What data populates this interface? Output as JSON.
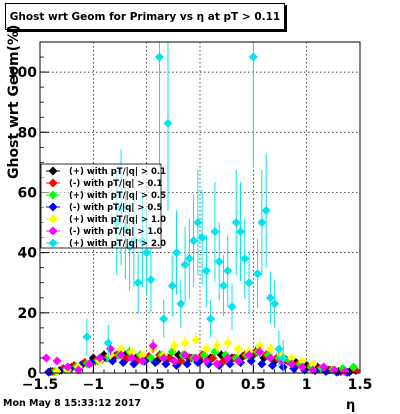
{
  "chart_data": {
    "type": "scatter",
    "title": "Ghost wrt Geom for Primary vs   η at pT > 0.11",
    "xlabel": "η",
    "ylabel": "Ghost wrt Geom(%)",
    "xlim": [
      -1.5,
      1.5
    ],
    "ylim": [
      0,
      110
    ],
    "x_ticks": [
      -1.5,
      -1,
      -0.5,
      0,
      0.5,
      1,
      1.5
    ],
    "x_tick_labels": [
      "−1.5",
      "−1",
      "−0.5",
      "0",
      "0.5",
      "1",
      "1.5"
    ],
    "y_ticks": [
      0,
      20,
      40,
      60,
      80,
      100
    ],
    "y_tick_labels": [
      "0",
      "20",
      "40",
      "60",
      "80",
      "100"
    ],
    "grid": true,
    "legend_position": "middle-left",
    "series": [
      {
        "name": "(+) with pT/|q| > 0.1",
        "color": "#000000",
        "x": [
          -1.4,
          -1.3,
          -1.2,
          -1.1,
          -1.0,
          -0.9,
          -0.8,
          -0.7,
          -0.6,
          -0.5,
          -0.4,
          -0.3,
          -0.2,
          -0.1,
          0.0,
          0.1,
          0.2,
          0.3,
          0.4,
          0.5,
          0.6,
          0.7,
          0.8,
          0.9,
          1.0,
          1.1,
          1.2,
          1.3,
          1.4
        ],
        "y": [
          0.5,
          1.0,
          2.0,
          3.0,
          5.0,
          6.0,
          5.5,
          6.0,
          5.0,
          4.5,
          4.0,
          5.0,
          6.0,
          5.0,
          4.0,
          5.0,
          6.0,
          5.0,
          5.5,
          6.0,
          5.0,
          4.0,
          4.5,
          3.5,
          2.5,
          2.0,
          1.0,
          0.5,
          0.3
        ]
      },
      {
        "name": "(-) with pT/|q| > 0.1",
        "color": "#ff0000",
        "x": [
          -1.38,
          -1.28,
          -1.18,
          -1.08,
          -0.98,
          -0.88,
          -0.78,
          -0.68,
          -0.58,
          -0.48,
          -0.38,
          -0.28,
          -0.18,
          -0.08,
          0.02,
          0.12,
          0.22,
          0.32,
          0.42,
          0.52,
          0.62,
          0.72,
          0.82,
          0.92,
          1.02,
          1.12,
          1.22,
          1.32,
          1.46
        ],
        "y": [
          0.5,
          1.5,
          2.5,
          3.5,
          4.0,
          5.0,
          6.0,
          5.0,
          4.5,
          5.5,
          6.0,
          5.0,
          4.0,
          5.0,
          6.0,
          5.0,
          4.0,
          5.0,
          6.0,
          7.0,
          6.0,
          5.0,
          4.0,
          3.0,
          2.0,
          1.5,
          1.0,
          0.5,
          0.8
        ]
      },
      {
        "name": "(+) with pT/|q| > 0.5",
        "color": "#00ff00",
        "x": [
          -1.36,
          -1.26,
          -1.16,
          -1.06,
          -0.96,
          -0.86,
          -0.76,
          -0.66,
          -0.56,
          -0.46,
          -0.36,
          -0.26,
          -0.16,
          -0.06,
          0.04,
          0.14,
          0.24,
          0.34,
          0.44,
          0.54,
          0.64,
          0.74,
          0.84,
          0.94,
          1.04,
          1.14,
          1.24,
          1.34,
          1.44
        ],
        "y": [
          0.5,
          1.0,
          2.0,
          3.0,
          4.0,
          5.0,
          6.0,
          7.0,
          6.0,
          5.0,
          6.0,
          7.0,
          6.0,
          5.0,
          6.0,
          7.0,
          6.0,
          5.0,
          6.0,
          7.0,
          6.0,
          5.0,
          4.0,
          3.0,
          2.0,
          1.5,
          1.0,
          1.5,
          2.0
        ]
      },
      {
        "name": "(-) with pT/|q| > 0.5",
        "color": "#0000ff",
        "x": [
          -1.42,
          -1.32,
          -1.22,
          -1.12,
          -1.02,
          -0.92,
          -0.82,
          -0.72,
          -0.62,
          -0.52,
          -0.42,
          -0.32,
          -0.22,
          -0.12,
          -0.02,
          0.08,
          0.18,
          0.28,
          0.38,
          0.48,
          0.58,
          0.68,
          0.78,
          0.88,
          0.98,
          1.08,
          1.18,
          1.28,
          1.38
        ],
        "y": [
          0.3,
          0.8,
          1.5,
          2.5,
          3.5,
          4.5,
          4.0,
          3.5,
          3.0,
          4.0,
          3.5,
          3.0,
          2.5,
          3.0,
          3.5,
          3.0,
          2.5,
          3.0,
          3.5,
          4.0,
          3.0,
          2.5,
          2.0,
          1.5,
          1.0,
          0.8,
          0.5,
          0.3,
          0.2
        ]
      },
      {
        "name": "(+) with pT/|q| > 1.0",
        "color": "#ffff00",
        "x": [
          -1.34,
          -1.24,
          -1.14,
          -1.04,
          -0.94,
          -0.84,
          -0.74,
          -0.64,
          -0.54,
          -0.44,
          -0.34,
          -0.24,
          -0.14,
          -0.04,
          0.06,
          0.16,
          0.26,
          0.36,
          0.46,
          0.56,
          0.66,
          0.76,
          0.86,
          0.96,
          1.06,
          1.16,
          1.26,
          1.36
        ],
        "y": [
          0.5,
          1.0,
          2.0,
          3.0,
          4.0,
          6.0,
          8.0,
          7.0,
          6.0,
          8.0,
          6.0,
          9.0,
          10.0,
          11.0,
          8.0,
          9.0,
          10.0,
          8.0,
          7.0,
          9.0,
          8.0,
          6.0,
          5.0,
          4.0,
          3.0,
          2.0,
          1.0,
          0.5
        ]
      },
      {
        "name": "(-) with pT/|q| > 1.0",
        "color": "#ff00ff",
        "x": [
          -1.44,
          -1.34,
          -1.24,
          -1.14,
          -1.04,
          -0.94,
          -0.84,
          -0.74,
          -0.64,
          -0.54,
          -0.44,
          -0.34,
          -0.24,
          -0.14,
          -0.04,
          0.06,
          0.16,
          0.26,
          0.36,
          0.46,
          0.56,
          0.66,
          0.76,
          0.86,
          0.96,
          1.06,
          1.16,
          1.26,
          1.36
        ],
        "y": [
          5.0,
          4.0,
          2.0,
          1.0,
          3.0,
          5.0,
          8.0,
          6.0,
          5.0,
          4.0,
          9.0,
          5.0,
          4.0,
          6.0,
          5.0,
          4.0,
          3.0,
          5.0,
          4.0,
          6.0,
          7.0,
          5.0,
          4.0,
          3.0,
          2.0,
          1.0,
          2.0,
          1.0,
          0.5
        ]
      },
      {
        "name": "(+) with pT/|q| > 2.0",
        "color": "#00e5ee",
        "x": [
          -1.06,
          -0.86,
          -0.78,
          -0.74,
          -0.7,
          -0.66,
          -0.62,
          -0.58,
          -0.54,
          -0.5,
          -0.46,
          -0.38,
          -0.34,
          -0.3,
          -0.26,
          -0.22,
          -0.18,
          -0.14,
          -0.1,
          -0.06,
          -0.02,
          0.02,
          0.06,
          0.1,
          0.14,
          0.18,
          0.22,
          0.26,
          0.3,
          0.34,
          0.38,
          0.42,
          0.46,
          0.5,
          0.54,
          0.58,
          0.62,
          0.66,
          0.7,
          0.74,
          0.78
        ],
        "y": [
          12,
          10,
          50,
          55,
          48,
          42,
          44,
          30,
          44,
          40,
          31,
          105,
          18,
          83,
          29,
          40,
          23,
          36,
          38,
          44,
          50,
          45,
          34,
          18,
          47,
          37,
          29,
          34,
          22,
          50,
          47,
          38,
          30,
          105,
          33,
          50,
          54,
          25,
          23,
          8,
          5
        ]
      }
    ]
  },
  "footer": {
    "timestamp": "Mon May  8 15:33:12 2017"
  }
}
